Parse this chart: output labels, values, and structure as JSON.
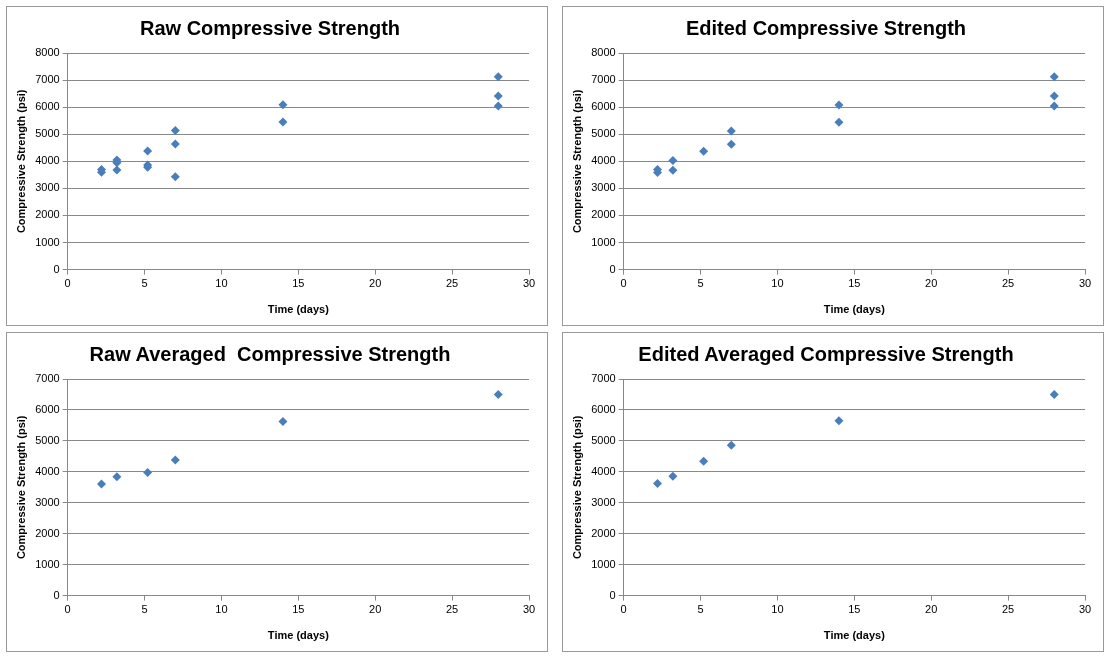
{
  "chart_data": [
    {
      "type": "scatter",
      "title": "Raw Compressive Strength",
      "xlabel": "Time (days)",
      "ylabel": "Compressive Strength (psi)",
      "color": "#4a7ebb",
      "marker": "diamond",
      "grid": "y",
      "x": [
        2.2,
        2.2,
        3.2,
        3.2,
        3.2,
        5.2,
        5.2,
        5.2,
        7,
        7,
        7,
        14,
        14,
        28,
        28,
        28
      ],
      "values": [
        3700,
        3600,
        4050,
        3950,
        3680,
        4380,
        3860,
        3780,
        5140,
        4640,
        3430,
        6090,
        5450,
        7120,
        6410,
        6040
      ],
      "xlim": [
        0,
        30
      ],
      "xticks": [
        0,
        5,
        10,
        15,
        20,
        25,
        30
      ],
      "ylim": [
        0,
        8000
      ],
      "yticks": [
        0,
        1000,
        2000,
        3000,
        4000,
        5000,
        6000,
        7000,
        8000
      ]
    },
    {
      "type": "scatter",
      "title": "Edited Compressive Strength",
      "xlabel": "Time (days)",
      "ylabel": "Compressive Strength (psi)",
      "color": "#4a7ebb",
      "marker": "diamond",
      "grid": "y",
      "x": [
        2.2,
        2.2,
        3.2,
        3.2,
        5.2,
        7,
        7,
        14,
        14,
        28,
        28,
        28
      ],
      "values": [
        3700,
        3590,
        4030,
        3670,
        4370,
        5120,
        4630,
        6080,
        5440,
        7120,
        6410,
        6040
      ],
      "xlim": [
        0,
        30
      ],
      "xticks": [
        0,
        5,
        10,
        15,
        20,
        25,
        30
      ],
      "ylim": [
        0,
        8000
      ],
      "yticks": [
        0,
        1000,
        2000,
        3000,
        4000,
        5000,
        6000,
        7000,
        8000
      ]
    },
    {
      "type": "scatter",
      "title": "Raw Averaged  Compressive Strength",
      "xlabel": "Time (days)",
      "ylabel": "Compressive Strength (psi)",
      "color": "#4a7ebb",
      "marker": "diamond",
      "grid": "y",
      "x": [
        2.2,
        3.2,
        5.2,
        7,
        14,
        28
      ],
      "values": [
        3610,
        3840,
        3980,
        4380,
        5630,
        6500
      ],
      "xlim": [
        0,
        30
      ],
      "xticks": [
        0,
        5,
        10,
        15,
        20,
        25,
        30
      ],
      "ylim": [
        0,
        7000
      ],
      "yticks": [
        0,
        1000,
        2000,
        3000,
        4000,
        5000,
        6000,
        7000
      ]
    },
    {
      "type": "scatter",
      "title": "Edited Averaged Compressive Strength",
      "xlabel": "Time (days)",
      "ylabel": "Compressive Strength (psi)",
      "color": "#4a7ebb",
      "marker": "diamond",
      "grid": "y",
      "x": [
        2.2,
        3.2,
        5.2,
        7,
        14,
        28
      ],
      "values": [
        3620,
        3860,
        4340,
        4860,
        5650,
        6500
      ],
      "xlim": [
        0,
        30
      ],
      "xticks": [
        0,
        5,
        10,
        15,
        20,
        25,
        30
      ],
      "ylim": [
        0,
        7000
      ],
      "yticks": [
        0,
        1000,
        2000,
        3000,
        4000,
        5000,
        6000,
        7000
      ]
    }
  ]
}
